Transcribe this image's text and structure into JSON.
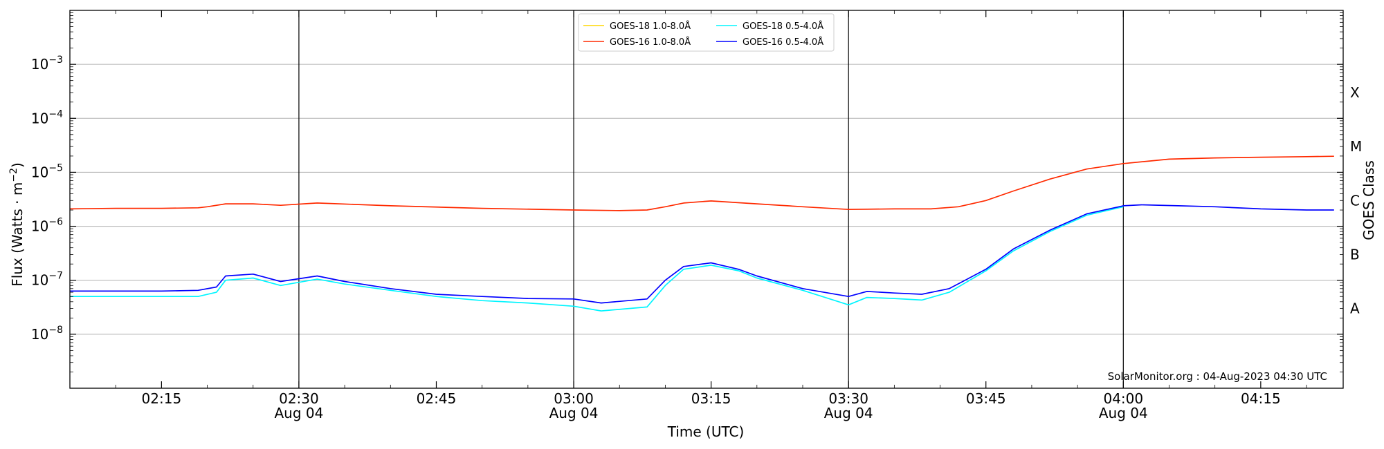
{
  "chart_data": {
    "type": "line",
    "xlabel": "Time (UTC)",
    "ylabel": "Flux (Watts · m",
    "ylabel_exp": "−2",
    "ylabel_close": ")",
    "y2label": "GOES Class",
    "yscale": "log",
    "xlim": [
      "2023-08-04 02:05",
      "2023-08-04 04:24"
    ],
    "ylim": [
      1e-09,
      0.01
    ],
    "yticks": [
      {
        "value": 1e-08,
        "base": "10",
        "exp": "−8"
      },
      {
        "value": 1e-07,
        "base": "10",
        "exp": "−7"
      },
      {
        "value": 1e-06,
        "base": "10",
        "exp": "−6"
      },
      {
        "value": 1e-05,
        "base": "10",
        "exp": "−5"
      },
      {
        "value": 0.0001,
        "base": "10",
        "exp": "−4"
      },
      {
        "value": 0.001,
        "base": "10",
        "exp": "−3"
      }
    ],
    "xticks": [
      {
        "time": "2023-08-04 02:15",
        "label": "02:15",
        "date": ""
      },
      {
        "time": "2023-08-04 02:30",
        "label": "02:30",
        "date": "Aug 04"
      },
      {
        "time": "2023-08-04 02:45",
        "label": "02:45",
        "date": ""
      },
      {
        "time": "2023-08-04 03:00",
        "label": "03:00",
        "date": "Aug 04"
      },
      {
        "time": "2023-08-04 03:15",
        "label": "03:15",
        "date": ""
      },
      {
        "time": "2023-08-04 03:30",
        "label": "03:30",
        "date": "Aug 04"
      },
      {
        "time": "2023-08-04 03:45",
        "label": "03:45",
        "date": ""
      },
      {
        "time": "2023-08-04 04:00",
        "label": "04:00",
        "date": "Aug 04"
      },
      {
        "time": "2023-08-04 04:15",
        "label": "04:15",
        "date": ""
      }
    ],
    "vlines": [
      "2023-08-04 02:30",
      "2023-08-04 03:00",
      "2023-08-04 03:30",
      "2023-08-04 04:00"
    ],
    "grid": "horizontal",
    "goes_classes": [
      {
        "label": "A",
        "value": 3e-08
      },
      {
        "label": "B",
        "value": 3e-07
      },
      {
        "label": "C",
        "value": 3e-06
      },
      {
        "label": "M",
        "value": 3e-05
      },
      {
        "label": "X",
        "value": 0.0003
      }
    ],
    "legend_position": "top-center",
    "annotation": "SolarMonitor.org : 04-Aug-2023 04:30 UTC",
    "series": [
      {
        "name": "GOES-18 1.0-8.0",
        "color": "#ffd700",
        "x": [],
        "y": []
      },
      {
        "name": "GOES-16 1.0-8.0",
        "color": "#ff2a00",
        "x": [
          "2023-08-04 02:05",
          "2023-08-04 02:10",
          "2023-08-04 02:15",
          "2023-08-04 02:19",
          "2023-08-04 02:20",
          "2023-08-04 02:22",
          "2023-08-04 02:25",
          "2023-08-04 02:28",
          "2023-08-04 02:32",
          "2023-08-04 02:40",
          "2023-08-04 02:50",
          "2023-08-04 03:00",
          "2023-08-04 03:05",
          "2023-08-04 03:08",
          "2023-08-04 03:10",
          "2023-08-04 03:12",
          "2023-08-04 03:15",
          "2023-08-04 03:20",
          "2023-08-04 03:25",
          "2023-08-04 03:30",
          "2023-08-04 03:35",
          "2023-08-04 03:39",
          "2023-08-04 03:42",
          "2023-08-04 03:45",
          "2023-08-04 03:48",
          "2023-08-04 03:52",
          "2023-08-04 03:56",
          "2023-08-04 04:00",
          "2023-08-04 04:05",
          "2023-08-04 04:10",
          "2023-08-04 04:15",
          "2023-08-04 04:20",
          "2023-08-04 04:23"
        ],
        "y": [
          2.1e-06,
          2.15e-06,
          2.15e-06,
          2.2e-06,
          2.3e-06,
          2.6e-06,
          2.6e-06,
          2.45e-06,
          2.7e-06,
          2.4e-06,
          2.15e-06,
          2e-06,
          1.95e-06,
          2e-06,
          2.3e-06,
          2.7e-06,
          2.95e-06,
          2.6e-06,
          2.3e-06,
          2.05e-06,
          2.1e-06,
          2.1e-06,
          2.3e-06,
          3e-06,
          4.5e-06,
          7.5e-06,
          1.15e-05,
          1.45e-05,
          1.75e-05,
          1.85e-05,
          1.9e-05,
          1.95e-05,
          1.98e-05
        ]
      },
      {
        "name": "GOES-18 0.5-4.0",
        "color": "#00f5ff",
        "x": [
          "2023-08-04 02:05",
          "2023-08-04 02:10",
          "2023-08-04 02:15",
          "2023-08-04 02:19",
          "2023-08-04 02:21",
          "2023-08-04 02:22",
          "2023-08-04 02:25",
          "2023-08-04 02:28",
          "2023-08-04 02:32",
          "2023-08-04 02:35",
          "2023-08-04 02:40",
          "2023-08-04 02:45",
          "2023-08-04 02:50",
          "2023-08-04 02:55",
          "2023-08-04 03:00",
          "2023-08-04 03:03",
          "2023-08-04 03:08",
          "2023-08-04 03:10",
          "2023-08-04 03:12",
          "2023-08-04 03:15",
          "2023-08-04 03:18",
          "2023-08-04 03:20",
          "2023-08-04 03:25",
          "2023-08-04 03:30",
          "2023-08-04 03:32",
          "2023-08-04 03:35",
          "2023-08-04 03:38",
          "2023-08-04 03:41",
          "2023-08-04 03:45",
          "2023-08-04 03:48",
          "2023-08-04 03:52",
          "2023-08-04 03:56",
          "2023-08-04 04:00"
        ],
        "y": [
          5e-08,
          5e-08,
          5e-08,
          5e-08,
          6e-08,
          1e-07,
          1.1e-07,
          8e-08,
          1.05e-07,
          8.5e-08,
          6.5e-08,
          5e-08,
          4.2e-08,
          3.8e-08,
          3.3e-08,
          2.7e-08,
          3.2e-08,
          8e-08,
          1.6e-07,
          1.9e-07,
          1.5e-07,
          1.1e-07,
          6.5e-08,
          3.5e-08,
          4.8e-08,
          4.6e-08,
          4.3e-08,
          6e-08,
          1.5e-07,
          3.5e-07,
          8e-07,
          1.6e-06,
          2.3e-06
        ]
      },
      {
        "name": "GOES-16 0.5-4.0",
        "color": "#0000ff",
        "x": [
          "2023-08-04 02:05",
          "2023-08-04 02:10",
          "2023-08-04 02:15",
          "2023-08-04 02:19",
          "2023-08-04 02:21",
          "2023-08-04 02:22",
          "2023-08-04 02:25",
          "2023-08-04 02:28",
          "2023-08-04 02:32",
          "2023-08-04 02:35",
          "2023-08-04 02:40",
          "2023-08-04 02:45",
          "2023-08-04 02:50",
          "2023-08-04 02:55",
          "2023-08-04 03:00",
          "2023-08-04 03:03",
          "2023-08-04 03:08",
          "2023-08-04 03:10",
          "2023-08-04 03:12",
          "2023-08-04 03:15",
          "2023-08-04 03:18",
          "2023-08-04 03:20",
          "2023-08-04 03:25",
          "2023-08-04 03:30",
          "2023-08-04 03:32",
          "2023-08-04 03:35",
          "2023-08-04 03:38",
          "2023-08-04 03:41",
          "2023-08-04 03:45",
          "2023-08-04 03:48",
          "2023-08-04 03:52",
          "2023-08-04 03:56",
          "2023-08-04 04:00",
          "2023-08-04 04:02",
          "2023-08-04 04:06",
          "2023-08-04 04:10",
          "2023-08-04 04:15",
          "2023-08-04 04:20",
          "2023-08-04 04:23"
        ],
        "y": [
          6.3e-08,
          6.3e-08,
          6.3e-08,
          6.5e-08,
          7.5e-08,
          1.2e-07,
          1.3e-07,
          9.5e-08,
          1.2e-07,
          9.5e-08,
          7e-08,
          5.5e-08,
          5e-08,
          4.6e-08,
          4.5e-08,
          3.8e-08,
          4.5e-08,
          1e-07,
          1.8e-07,
          2.1e-07,
          1.6e-07,
          1.2e-07,
          7e-08,
          5e-08,
          6.2e-08,
          5.8e-08,
          5.5e-08,
          7e-08,
          1.6e-07,
          3.8e-07,
          8.5e-07,
          1.7e-06,
          2.4e-06,
          2.5e-06,
          2.4e-06,
          2.3e-06,
          2.1e-06,
          2e-06,
          2e-06
        ]
      }
    ]
  }
}
